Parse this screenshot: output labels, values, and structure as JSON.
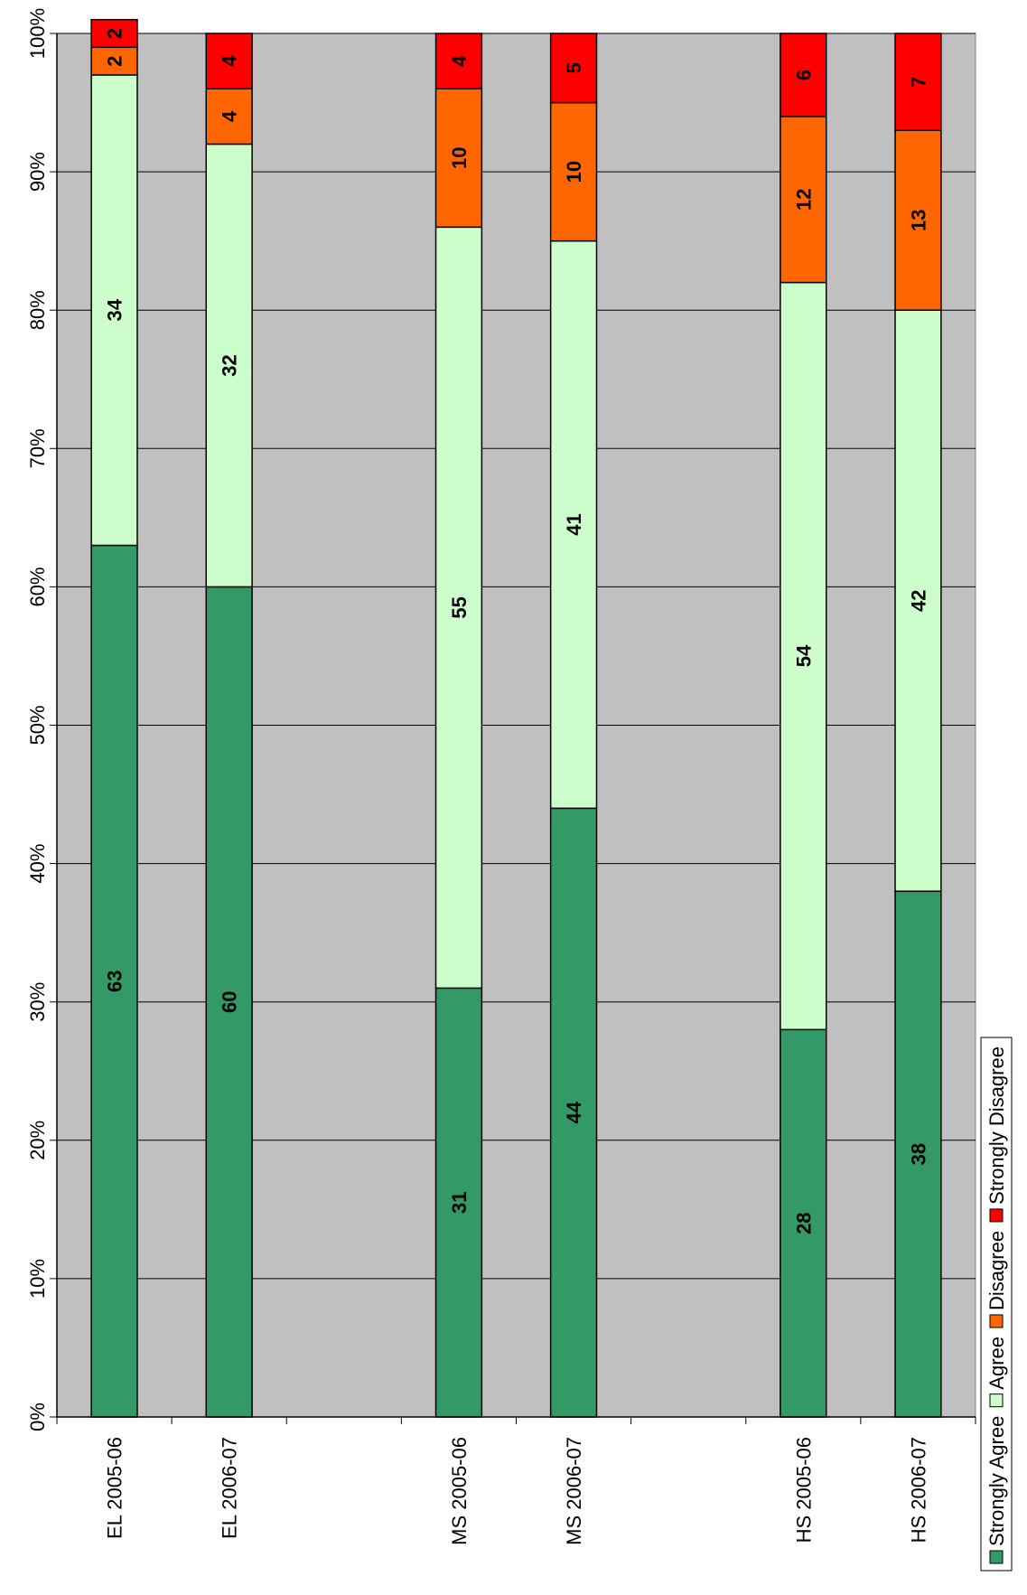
{
  "chart_data": {
    "type": "bar",
    "stacked": "percent",
    "title": "",
    "xlabel": "",
    "ylabel": "",
    "ylim": [
      0,
      100
    ],
    "yticks": [
      "0%",
      "10%",
      "20%",
      "30%",
      "40%",
      "50%",
      "60%",
      "70%",
      "80%",
      "90%",
      "100%"
    ],
    "grid": true,
    "categories": [
      "EL 2005-06",
      "EL 2006-07",
      "",
      "MS 2005-06",
      "MS 2006-07",
      "",
      "HS 2005-06",
      "HS 2006-07"
    ],
    "series": [
      {
        "name": "Strongly Agree",
        "color": "#339966",
        "values": [
          63,
          60,
          null,
          31,
          44,
          null,
          28,
          38
        ]
      },
      {
        "name": "Agree",
        "color": "#ccffcc",
        "values": [
          34,
          32,
          null,
          55,
          41,
          null,
          54,
          42
        ]
      },
      {
        "name": "Disagree",
        "color": "#ff6600",
        "values": [
          2,
          4,
          null,
          10,
          10,
          null,
          12,
          13
        ]
      },
      {
        "name": "Strongly Disagree",
        "color": "#ff0000",
        "values": [
          2,
          4,
          null,
          4,
          5,
          null,
          6,
          7
        ]
      }
    ],
    "plot_background": "#c0c0c0",
    "legend": "bottom",
    "orientation": "rotated"
  }
}
